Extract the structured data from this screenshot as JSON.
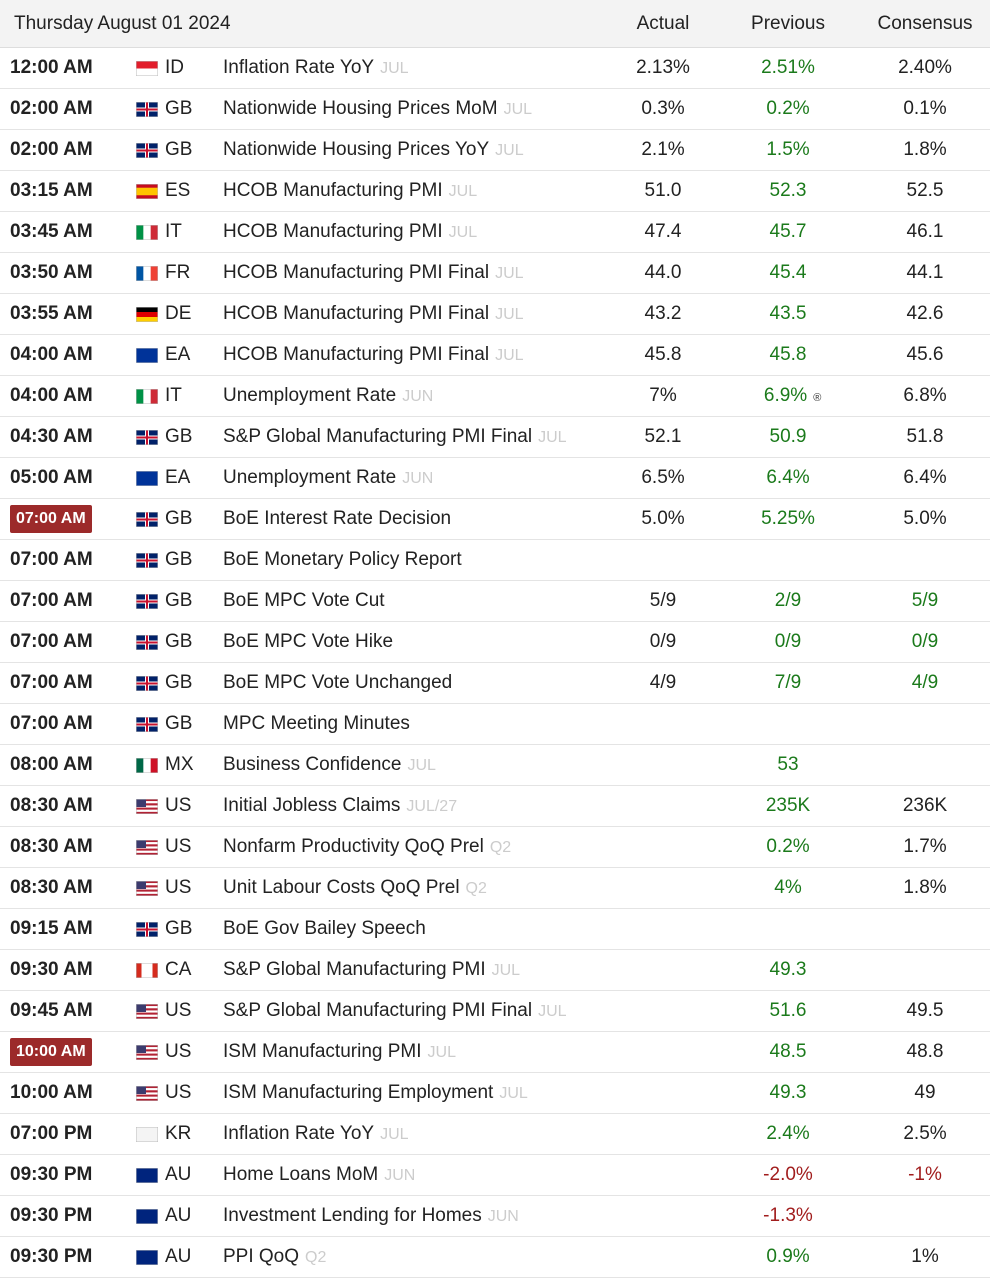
{
  "header": {
    "date": "Thursday August 01 2024",
    "columns": [
      "Actual",
      "Previous",
      "Consensus"
    ]
  },
  "colors": {
    "up": "#1b7a1b",
    "down": "#a11d1d"
  },
  "rows": [
    {
      "time": "12:00 AM",
      "country": "ID",
      "flag": {
        "dir": "h",
        "stripes": [
          "#e21d2b",
          "#ffffff"
        ]
      },
      "event": "Inflation Rate YoY",
      "period": "JUL",
      "actual": "2.13%",
      "previous": "2.51%",
      "previous_tone": "up",
      "consensus": "2.40%"
    },
    {
      "time": "02:00 AM",
      "country": "GB",
      "flag": {
        "dir": "uk",
        "stripes": [
          "#012169",
          "#ffffff",
          "#c8102e"
        ]
      },
      "event": "Nationwide Housing Prices MoM",
      "period": "JUL",
      "actual": "0.3%",
      "previous": "0.2%",
      "previous_tone": "up",
      "consensus": "0.1%"
    },
    {
      "time": "02:00 AM",
      "country": "GB",
      "flag": {
        "dir": "uk",
        "stripes": [
          "#012169",
          "#ffffff",
          "#c8102e"
        ]
      },
      "event": "Nationwide Housing Prices YoY",
      "period": "JUL",
      "actual": "2.1%",
      "previous": "1.5%",
      "previous_tone": "up",
      "consensus": "1.8%"
    },
    {
      "time": "03:15 AM",
      "country": "ES",
      "flag": {
        "dir": "h",
        "stripes": [
          "#c60b1e",
          "#ffc400",
          "#ffc400",
          "#c60b1e"
        ]
      },
      "event": "HCOB Manufacturing PMI",
      "period": "JUL",
      "actual": "51.0",
      "previous": "52.3",
      "previous_tone": "up",
      "consensus": "52.5"
    },
    {
      "time": "03:45 AM",
      "country": "IT",
      "flag": {
        "dir": "v",
        "stripes": [
          "#009246",
          "#ffffff",
          "#ce2b37"
        ]
      },
      "event": "HCOB Manufacturing PMI",
      "period": "JUL",
      "actual": "47.4",
      "previous": "45.7",
      "previous_tone": "up",
      "consensus": "46.1"
    },
    {
      "time": "03:50 AM",
      "country": "FR",
      "flag": {
        "dir": "v",
        "stripes": [
          "#0055a4",
          "#ffffff",
          "#ef4135"
        ]
      },
      "event": "HCOB Manufacturing PMI Final",
      "period": "JUL",
      "actual": "44.0",
      "previous": "45.4",
      "previous_tone": "up",
      "consensus": "44.1"
    },
    {
      "time": "03:55 AM",
      "country": "DE",
      "flag": {
        "dir": "h",
        "stripes": [
          "#000000",
          "#dd0000",
          "#ffce00"
        ]
      },
      "event": "HCOB Manufacturing PMI Final",
      "period": "JUL",
      "actual": "43.2",
      "previous": "43.5",
      "previous_tone": "up",
      "consensus": "42.6"
    },
    {
      "time": "04:00 AM",
      "country": "EA",
      "flag": {
        "dir": "h",
        "stripes": [
          "#003399"
        ]
      },
      "event": "HCOB Manufacturing PMI Final",
      "period": "JUL",
      "actual": "45.8",
      "previous": "45.8",
      "previous_tone": "up",
      "consensus": "45.6"
    },
    {
      "time": "04:00 AM",
      "country": "IT",
      "flag": {
        "dir": "v",
        "stripes": [
          "#009246",
          "#ffffff",
          "#ce2b37"
        ]
      },
      "event": "Unemployment Rate",
      "period": "JUN",
      "actual": "7%",
      "previous": "6.9%",
      "previous_tone": "up",
      "previous_note": "®",
      "consensus": "6.8%"
    },
    {
      "time": "04:30 AM",
      "country": "GB",
      "flag": {
        "dir": "uk",
        "stripes": [
          "#012169",
          "#ffffff",
          "#c8102e"
        ]
      },
      "event": "S&P Global Manufacturing PMI Final",
      "period": "JUL",
      "actual": "52.1",
      "previous": "50.9",
      "previous_tone": "up",
      "consensus": "51.8"
    },
    {
      "time": "05:00 AM",
      "country": "EA",
      "flag": {
        "dir": "h",
        "stripes": [
          "#003399"
        ]
      },
      "event": "Unemployment Rate",
      "period": "JUN",
      "actual": "6.5%",
      "previous": "6.4%",
      "previous_tone": "up",
      "consensus": "6.4%"
    },
    {
      "time": "07:00 AM",
      "time_highlight": true,
      "country": "GB",
      "flag": {
        "dir": "uk",
        "stripes": [
          "#012169",
          "#ffffff",
          "#c8102e"
        ]
      },
      "event": "BoE Interest Rate Decision",
      "actual": "5.0%",
      "previous": "5.25%",
      "previous_tone": "up",
      "consensus": "5.0%"
    },
    {
      "time": "07:00 AM",
      "country": "GB",
      "flag": {
        "dir": "uk",
        "stripes": [
          "#012169",
          "#ffffff",
          "#c8102e"
        ]
      },
      "event": "BoE Monetary Policy Report"
    },
    {
      "time": "07:00 AM",
      "country": "GB",
      "flag": {
        "dir": "uk",
        "stripes": [
          "#012169",
          "#ffffff",
          "#c8102e"
        ]
      },
      "event": "BoE MPC Vote Cut",
      "actual": "5/9",
      "previous": "2/9",
      "previous_tone": "up",
      "consensus": "5/9",
      "consensus_tone": "up"
    },
    {
      "time": "07:00 AM",
      "country": "GB",
      "flag": {
        "dir": "uk",
        "stripes": [
          "#012169",
          "#ffffff",
          "#c8102e"
        ]
      },
      "event": "BoE MPC Vote Hike",
      "actual": "0/9",
      "previous": "0/9",
      "previous_tone": "up",
      "consensus": "0/9",
      "consensus_tone": "up"
    },
    {
      "time": "07:00 AM",
      "country": "GB",
      "flag": {
        "dir": "uk",
        "stripes": [
          "#012169",
          "#ffffff",
          "#c8102e"
        ]
      },
      "event": "BoE MPC Vote Unchanged",
      "actual": "4/9",
      "previous": "7/9",
      "previous_tone": "up",
      "consensus": "4/9",
      "consensus_tone": "up"
    },
    {
      "time": "07:00 AM",
      "country": "GB",
      "flag": {
        "dir": "uk",
        "stripes": [
          "#012169",
          "#ffffff",
          "#c8102e"
        ]
      },
      "event": "MPC Meeting Minutes"
    },
    {
      "time": "08:00 AM",
      "country": "MX",
      "flag": {
        "dir": "v",
        "stripes": [
          "#006847",
          "#ffffff",
          "#ce1126"
        ]
      },
      "event": "Business Confidence",
      "period": "JUL",
      "previous": "53",
      "previous_tone": "up"
    },
    {
      "time": "08:30 AM",
      "country": "US",
      "flag": {
        "dir": "us",
        "stripes": [
          "#b22234",
          "#ffffff",
          "#3c3b6e"
        ]
      },
      "event": "Initial Jobless Claims",
      "period": "JUL/27",
      "previous": "235K",
      "previous_tone": "up",
      "consensus": "236K"
    },
    {
      "time": "08:30 AM",
      "country": "US",
      "flag": {
        "dir": "us",
        "stripes": [
          "#b22234",
          "#ffffff",
          "#3c3b6e"
        ]
      },
      "event": "Nonfarm Productivity QoQ Prel",
      "period": "Q2",
      "previous": "0.2%",
      "previous_tone": "up",
      "consensus": "1.7%"
    },
    {
      "time": "08:30 AM",
      "country": "US",
      "flag": {
        "dir": "us",
        "stripes": [
          "#b22234",
          "#ffffff",
          "#3c3b6e"
        ]
      },
      "event": "Unit Labour Costs QoQ Prel",
      "period": "Q2",
      "previous": "4%",
      "previous_tone": "up",
      "consensus": "1.8%"
    },
    {
      "time": "09:15 AM",
      "country": "GB",
      "flag": {
        "dir": "uk",
        "stripes": [
          "#012169",
          "#ffffff",
          "#c8102e"
        ]
      },
      "event": "BoE Gov Bailey Speech"
    },
    {
      "time": "09:30 AM",
      "country": "CA",
      "flag": {
        "dir": "v",
        "stripes": [
          "#d52b1e",
          "#ffffff",
          "#ffffff",
          "#d52b1e"
        ]
      },
      "event": "S&P Global Manufacturing PMI",
      "period": "JUL",
      "previous": "49.3",
      "previous_tone": "up"
    },
    {
      "time": "09:45 AM",
      "country": "US",
      "flag": {
        "dir": "us",
        "stripes": [
          "#b22234",
          "#ffffff",
          "#3c3b6e"
        ]
      },
      "event": "S&P Global Manufacturing PMI Final",
      "period": "JUL",
      "previous": "51.6",
      "previous_tone": "up",
      "consensus": "49.5"
    },
    {
      "time": "10:00 AM",
      "time_highlight": true,
      "country": "US",
      "flag": {
        "dir": "us",
        "stripes": [
          "#b22234",
          "#ffffff",
          "#3c3b6e"
        ]
      },
      "event": "ISM Manufacturing PMI",
      "period": "JUL",
      "previous": "48.5",
      "previous_tone": "up",
      "consensus": "48.8"
    },
    {
      "time": "10:00 AM",
      "country": "US",
      "flag": {
        "dir": "us",
        "stripes": [
          "#b22234",
          "#ffffff",
          "#3c3b6e"
        ]
      },
      "event": "ISM Manufacturing Employment",
      "period": "JUL",
      "previous": "49.3",
      "previous_tone": "up",
      "consensus": "49"
    },
    {
      "time": "07:00 PM",
      "country": "KR",
      "flag": {
        "dir": "h",
        "stripes": [
          "#f4f4f4"
        ]
      },
      "event": "Inflation Rate YoY",
      "period": "JUL",
      "previous": "2.4%",
      "previous_tone": "up",
      "consensus": "2.5%"
    },
    {
      "time": "09:30 PM",
      "country": "AU",
      "flag": {
        "dir": "h",
        "stripes": [
          "#00247d"
        ]
      },
      "event": "Home Loans MoM",
      "period": "JUN",
      "previous": "-2.0%",
      "previous_tone": "down",
      "consensus": "-1%",
      "consensus_tone": "down"
    },
    {
      "time": "09:30 PM",
      "country": "AU",
      "flag": {
        "dir": "h",
        "stripes": [
          "#00247d"
        ]
      },
      "event": "Investment Lending for Homes",
      "period": "JUN",
      "previous": "-1.3%",
      "previous_tone": "down"
    },
    {
      "time": "09:30 PM",
      "country": "AU",
      "flag": {
        "dir": "h",
        "stripes": [
          "#00247d"
        ]
      },
      "event": "PPI QoQ",
      "period": "Q2",
      "previous": "0.9%",
      "previous_tone": "up",
      "consensus": "1%"
    }
  ]
}
